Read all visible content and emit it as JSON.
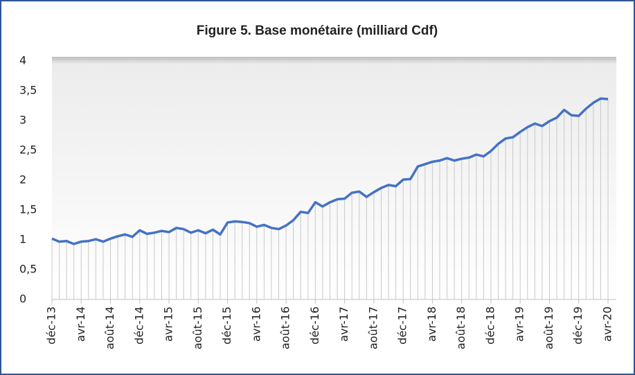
{
  "chart_data": {
    "type": "line",
    "title": "Figure 5. Base monétaire (milliard Cdf)",
    "categories": [
      "déc-13",
      null,
      null,
      null,
      "avr-14",
      null,
      null,
      null,
      "août-14",
      null,
      null,
      null,
      "déc-14",
      null,
      null,
      null,
      "avr-15",
      null,
      null,
      null,
      "août-15",
      null,
      null,
      null,
      "déc-15",
      null,
      null,
      null,
      "avr-16",
      null,
      null,
      null,
      "août-16",
      null,
      null,
      null,
      "déc-16",
      null,
      null,
      null,
      "avr-17",
      null,
      null,
      null,
      "août-17",
      null,
      null,
      null,
      "déc-17",
      null,
      null,
      null,
      "avr-18",
      null,
      null,
      null,
      "août-18",
      null,
      null,
      null,
      "déc-18",
      null,
      null,
      null,
      "avr-19",
      null,
      null,
      null,
      "août-19",
      null,
      null,
      null,
      "déc-19",
      null,
      null,
      null,
      "avr-20"
    ],
    "series": [
      {
        "color": "#4472c4",
        "values": [
          1.02,
          0.97,
          0.98,
          0.93,
          0.97,
          0.98,
          1.01,
          0.97,
          1.02,
          1.06,
          1.09,
          1.05,
          1.16,
          1.1,
          1.12,
          1.15,
          1.13,
          1.2,
          1.18,
          1.12,
          1.16,
          1.11,
          1.17,
          1.09,
          1.29,
          1.31,
          1.3,
          1.28,
          1.22,
          1.25,
          1.2,
          1.18,
          1.24,
          1.33,
          1.47,
          1.45,
          1.63,
          1.56,
          1.63,
          1.68,
          1.69,
          1.79,
          1.81,
          1.72,
          1.8,
          1.87,
          1.92,
          1.9,
          2.01,
          2.02,
          2.23,
          2.27,
          2.31,
          2.33,
          2.37,
          2.33,
          2.36,
          2.38,
          2.43,
          2.4,
          2.49,
          2.61,
          2.7,
          2.72,
          2.81,
          2.89,
          2.95,
          2.91,
          2.99,
          3.05,
          3.18,
          3.09,
          3.08,
          3.2,
          3.3,
          3.37,
          3.36
        ]
      }
    ],
    "ylim": [
      0,
      4
    ],
    "yticks": [
      0,
      {
        "value": 0.5,
        "label": "0,5"
      },
      1,
      {
        "value": 1.5,
        "label": "1,5"
      },
      2,
      {
        "value": 2.5,
        "label": "2,5"
      },
      3,
      {
        "value": 3.5,
        "label": "3,5"
      },
      4
    ],
    "drop_lines": true
  }
}
